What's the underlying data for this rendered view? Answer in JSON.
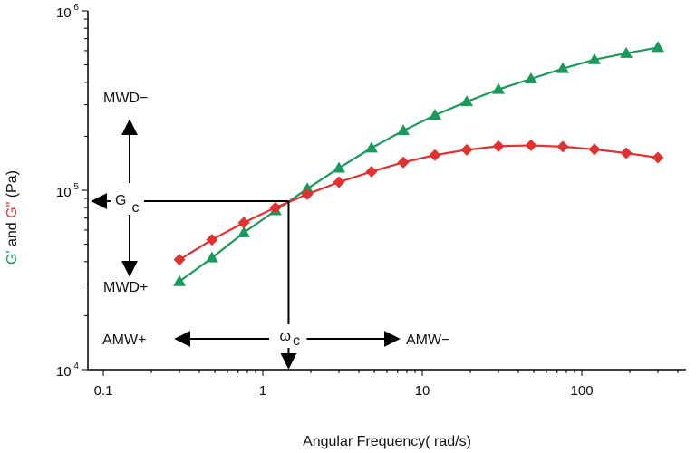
{
  "chart_data": {
    "type": "line",
    "title": "",
    "xlabel": "Angular Frequency( rad/s)",
    "ylabel_parts": [
      "G'",
      " and ",
      "G\"",
      " (Pa)"
    ],
    "xscale": "log",
    "yscale": "log",
    "xlim": [
      0.08,
      450
    ],
    "ylim": [
      10000,
      1000000
    ],
    "x_tick_labels": [
      {
        "value": 0.1,
        "text": "0.1"
      },
      {
        "value": 1,
        "text": "1"
      },
      {
        "value": 10,
        "text": "10"
      },
      {
        "value": 100,
        "text": "100"
      }
    ],
    "y_tick_labels": [
      {
        "value": 10000,
        "base": "10",
        "exp": "4"
      },
      {
        "value": 100000,
        "base": "10",
        "exp": "5"
      },
      {
        "value": 1000000,
        "base": "10",
        "exp": "6"
      }
    ],
    "x": [
      0.3,
      0.48,
      0.76,
      1.2,
      1.9,
      3.0,
      4.8,
      7.6,
      12,
      19,
      30,
      48,
      76,
      120,
      190,
      300
    ],
    "series": [
      {
        "name": "G'",
        "color": "#1a9a5a",
        "marker": "triangle",
        "values": [
          31000,
          42000,
          58000,
          77000,
          102000,
          133000,
          172000,
          215000,
          262000,
          312000,
          365000,
          418000,
          477000,
          535000,
          580000,
          625000
        ]
      },
      {
        "name": "G\"",
        "color": "#e03030",
        "marker": "diamond",
        "values": [
          41000,
          53000,
          66000,
          80000,
          95000,
          111000,
          127000,
          143000,
          157000,
          168000,
          176000,
          178000,
          175000,
          169000,
          161000,
          152000
        ]
      }
    ],
    "annotations": {
      "crossover": {
        "x": 1.45,
        "y": 87000
      },
      "mwd_minus": "MWD−",
      "mwd_plus": "MWD+",
      "gc_main": "G",
      "gc_sub": "c",
      "amw_plus": "AMW+",
      "amw_minus": "AMW−",
      "omega_main": "ω",
      "omega_sub": "c"
    }
  }
}
